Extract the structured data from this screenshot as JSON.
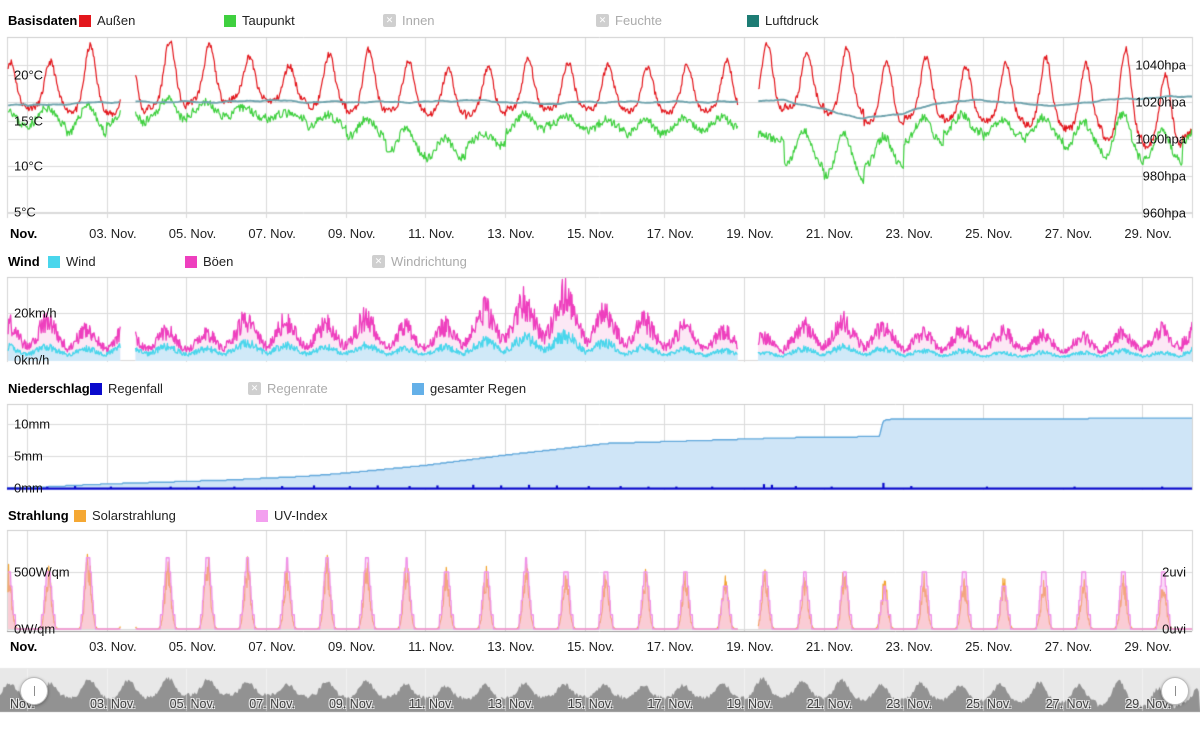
{
  "panels": {
    "basisdaten": {
      "title": "Basisdaten",
      "legend": [
        {
          "key": "aussen",
          "label": "Außen",
          "color": "#e3161c",
          "enabled": true
        },
        {
          "key": "taupunkt",
          "label": "Taupunkt",
          "color": "#3fd03f",
          "enabled": true
        },
        {
          "key": "innen",
          "label": "Innen",
          "enabled": false
        },
        {
          "key": "feuchte",
          "label": "Feuchte",
          "enabled": false
        },
        {
          "key": "luftdruck",
          "label": "Luftdruck",
          "color": "#1d7c74",
          "enabled": true
        }
      ],
      "y_left": [
        {
          "label": "20°C",
          "value": 20
        },
        {
          "label": "15°C",
          "value": 15
        },
        {
          "label": "10°C",
          "value": 10
        },
        {
          "label": "5°C",
          "value": 5
        }
      ],
      "y_right": [
        {
          "label": "1040hpa",
          "value": 1040
        },
        {
          "label": "1020hpa",
          "value": 1020
        },
        {
          "label": "1000hpa",
          "value": 1000
        },
        {
          "label": "980hpa",
          "value": 980
        },
        {
          "label": "960hpa",
          "value": 960
        }
      ]
    },
    "wind": {
      "title": "Wind",
      "legend": [
        {
          "key": "wind",
          "label": "Wind",
          "color": "#49d6ec",
          "enabled": true
        },
        {
          "key": "boeen",
          "label": "Böen",
          "color": "#ee3fbe",
          "enabled": true
        },
        {
          "key": "windrichtung",
          "label": "Windrichtung",
          "enabled": false
        }
      ],
      "y_left": [
        {
          "label": "20km/h",
          "value": 20
        },
        {
          "label": "0km/h",
          "value": 0
        }
      ]
    },
    "niederschlag": {
      "title": "Niederschlag",
      "legend": [
        {
          "key": "regenfall",
          "label": "Regenfall",
          "color": "#0a0acc",
          "enabled": true
        },
        {
          "key": "regenrate",
          "label": "Regenrate",
          "enabled": false
        },
        {
          "key": "gesamter-regen",
          "label": "gesamter Regen",
          "color": "#64b0e8",
          "enabled": true
        }
      ],
      "y_left": [
        {
          "label": "10mm",
          "value": 10
        },
        {
          "label": "5mm",
          "value": 5
        },
        {
          "label": "0mm",
          "value": 0
        }
      ]
    },
    "strahlung": {
      "title": "Strahlung",
      "legend": [
        {
          "key": "solarstrahlung",
          "label": "Solarstrahlung",
          "color": "#f5a833",
          "enabled": true
        },
        {
          "key": "uv-index",
          "label": "UV-Index",
          "color": "#f3a0ef",
          "enabled": true
        }
      ],
      "y_left": [
        {
          "label": "500W/qm",
          "value": 500
        },
        {
          "label": "0W/qm",
          "value": 0
        }
      ],
      "y_right": [
        {
          "label": "2uvi",
          "value": 2
        },
        {
          "label": "0uvi",
          "value": 0
        }
      ]
    }
  },
  "x_axis": {
    "month_label": "Nov.",
    "date_labels": [
      "03. Nov.",
      "05. Nov.",
      "07. Nov.",
      "09. Nov.",
      "11. Nov.",
      "13. Nov.",
      "15. Nov.",
      "17. Nov.",
      "19. Nov.",
      "21. Nov.",
      "23. Nov.",
      "25. Nov.",
      "27. Nov.",
      "29. Nov."
    ]
  },
  "chart_data": [
    {
      "type": "line",
      "panel": "basisdaten",
      "title": "Basisdaten",
      "x_range_days": [
        1,
        30
      ],
      "gaps": [
        [
          3.35,
          3.72
        ],
        [
          18.85,
          19.35
        ]
      ],
      "y_left_axis": {
        "unit": "°C",
        "ticks": [
          20,
          15,
          10,
          5
        ],
        "range": [
          4.3,
          24.2
        ]
      },
      "y_right_axis": {
        "unit": "hpa",
        "ticks": [
          1040,
          1020,
          1000,
          980,
          960
        ],
        "range": [
          957,
          1055
        ]
      },
      "series": [
        {
          "key": "aussen",
          "name": "Außen",
          "unit": "°C",
          "line_color": "#e3161c",
          "daily_max": [
            21.6,
            23.2,
            22.9,
            23.5,
            23.2,
            22.2,
            21.2,
            22.3,
            22.7,
            21.3,
            20.6,
            21.0,
            21.9,
            21.4,
            21.0,
            20.7,
            21.0,
            21.6,
            23.7,
            22.6,
            22.9,
            21.4,
            21.8,
            20.9,
            21.4,
            22.0,
            21.1,
            22.7,
            19.8,
            19.2
          ],
          "daily_min": [
            16.3,
            16.0,
            15.8,
            16.6,
            17.1,
            17.2,
            17.0,
            16.5,
            16.1,
            16.2,
            15.8,
            15.6,
            16.1,
            16.3,
            16.4,
            16.2,
            16.0,
            16.1,
            15.9,
            16.4,
            15.9,
            14.9,
            15.4,
            15.1,
            14.9,
            14.4,
            14.1,
            13.1,
            12.4,
            13.4
          ]
        },
        {
          "key": "taupunkt",
          "name": "Taupunkt",
          "unit": "°C",
          "line_color": "#3fd03f",
          "daily_max": [
            16.6,
            16.9,
            16.3,
            17.2,
            16.9,
            16.5,
            16.0,
            15.8,
            15.1,
            13.9,
            12.9,
            13.6,
            15.9,
            15.6,
            15.1,
            14.9,
            15.1,
            15.3,
            13.6,
            14.1,
            13.6,
            13.1,
            15.1,
            15.6,
            15.3,
            15.5,
            14.9,
            15.6,
            13.6,
            14.6
          ],
          "daily_min": [
            14.1,
            13.3,
            14.6,
            15.1,
            15.6,
            15.3,
            14.9,
            14.1,
            13.1,
            11.3,
            10.9,
            12.1,
            13.6,
            14.1,
            13.9,
            13.6,
            13.9,
            14.1,
            12.6,
            9.6,
            8.4,
            9.9,
            12.6,
            13.6,
            13.1,
            12.6,
            11.6,
            10.6,
            10.6,
            12.6
          ]
        },
        {
          "key": "luftdruck",
          "name": "Luftdruck",
          "unit": "hpa",
          "line_color": "#6fa3ad",
          "daily": [
            1018,
            1019,
            1020,
            1020,
            1020,
            1020,
            1021,
            1020,
            1020,
            1020,
            1020,
            1021,
            1020,
            1019,
            1020,
            1020,
            1020,
            1020,
            1020,
            1021,
            1016,
            1011,
            1014,
            1020,
            1021,
            1019,
            1018,
            1021,
            1022,
            1023
          ]
        }
      ]
    },
    {
      "type": "area",
      "panel": "wind",
      "title": "Wind",
      "gaps": [
        [
          3.35,
          3.72
        ],
        [
          18.85,
          19.35
        ]
      ],
      "y_axis": {
        "unit": "km/h",
        "ticks": [
          20,
          0
        ],
        "range": [
          0,
          35
        ]
      },
      "series": [
        {
          "key": "boeen",
          "name": "Böen",
          "unit": "km/h",
          "line_color": "#ee3fbe",
          "fill": "#fce8f5",
          "daily_max": [
            20,
            16,
            17,
            15,
            14,
            21,
            20,
            19,
            22,
            17,
            18,
            26,
            30,
            34,
            25,
            20,
            17,
            15,
            12,
            18,
            20,
            17,
            14,
            16,
            15,
            13,
            12,
            14,
            16,
            24
          ]
        },
        {
          "key": "wind",
          "name": "Wind",
          "unit": "km/h",
          "line_color": "#49d6ec",
          "fill": "#d0e9f8",
          "daily_max": [
            7,
            6,
            8,
            7,
            6,
            9,
            8,
            7,
            8,
            6,
            7,
            10,
            12,
            13,
            9,
            7,
            6,
            5,
            4,
            6,
            7,
            6,
            5,
            5,
            4,
            4,
            4,
            5,
            4,
            7
          ]
        }
      ]
    },
    {
      "type": "area",
      "panel": "niederschlag",
      "title": "Niederschlag",
      "y_axis": {
        "unit": "mm",
        "ticks": [
          10,
          5,
          0
        ],
        "range": [
          0,
          13.1
        ]
      },
      "series": [
        {
          "key": "gesamter-regen",
          "name": "gesamter Regen",
          "unit": "mm",
          "line_color": "#63a9dc",
          "fill": "#cfe5f7",
          "cumulative": [
            [
              0.3,
              0.0
            ],
            [
              1,
              0.1
            ],
            [
              2,
              0.4
            ],
            [
              3,
              0.7
            ],
            [
              4,
              0.9
            ],
            [
              5,
              1.1
            ],
            [
              6,
              1.3
            ],
            [
              7,
              1.6
            ],
            [
              8,
              1.9
            ],
            [
              9,
              2.4
            ],
            [
              10,
              3.0
            ],
            [
              11,
              3.6
            ],
            [
              12,
              4.4
            ],
            [
              13,
              5.2
            ],
            [
              14,
              5.9
            ],
            [
              15,
              6.6
            ],
            [
              15.5,
              7.0
            ],
            [
              17,
              7.3
            ],
            [
              18,
              7.5
            ],
            [
              19,
              7.7
            ],
            [
              20,
              7.9
            ],
            [
              21,
              8.0
            ],
            [
              22.4,
              8.1
            ],
            [
              22.5,
              10.6
            ],
            [
              22.7,
              10.8
            ],
            [
              24,
              10.85
            ],
            [
              27,
              10.9
            ],
            [
              30.3,
              11.0
            ]
          ]
        },
        {
          "key": "regenfall",
          "name": "Regenfall",
          "unit": "mm",
          "line_color": "#0a0acc",
          "bars": [
            [
              1.5,
              0.2
            ],
            [
              2.2,
              0.3
            ],
            [
              3.1,
              0.2
            ],
            [
              4.6,
              0.2
            ],
            [
              5.3,
              0.3
            ],
            [
              6.2,
              0.2
            ],
            [
              7.4,
              0.3
            ],
            [
              8.2,
              0.4
            ],
            [
              9.1,
              0.3
            ],
            [
              9.8,
              0.4
            ],
            [
              10.6,
              0.3
            ],
            [
              11.3,
              0.4
            ],
            [
              12.2,
              0.5
            ],
            [
              12.9,
              0.4
            ],
            [
              13.6,
              0.5
            ],
            [
              14.3,
              0.4
            ],
            [
              15.1,
              0.3
            ],
            [
              15.9,
              0.3
            ],
            [
              16.6,
              0.2
            ],
            [
              17.3,
              0.2
            ],
            [
              18.2,
              0.2
            ],
            [
              19.5,
              0.6
            ],
            [
              19.7,
              0.5
            ],
            [
              20.3,
              0.3
            ],
            [
              21.2,
              0.2
            ],
            [
              22.5,
              0.8
            ],
            [
              23.2,
              0.3
            ],
            [
              25.1,
              0.2
            ],
            [
              27.3,
              0.2
            ],
            [
              29.5,
              0.2
            ]
          ]
        }
      ]
    },
    {
      "type": "area",
      "panel": "strahlung",
      "title": "Strahlung",
      "gaps": [
        [
          3.35,
          3.72
        ],
        [
          18.85,
          19.35
        ]
      ],
      "y_left_axis": {
        "unit": "W/qm",
        "ticks": [
          500,
          0
        ],
        "range": [
          0,
          860
        ]
      },
      "y_right_axis": {
        "unit": "uvi",
        "ticks": [
          2,
          0
        ],
        "range": [
          0,
          3.5
        ]
      },
      "series": [
        {
          "key": "solarstrahlung",
          "name": "Solarstrahlung",
          "unit": "W/qm",
          "line_color": "#f2a430",
          "fill": "rgba(250,196,120,0.45)",
          "daily_peak": [
            500,
            630,
            545,
            560,
            600,
            560,
            520,
            565,
            580,
            540,
            500,
            480,
            520,
            500,
            480,
            460,
            470,
            420,
            480,
            440,
            520,
            400,
            430,
            400,
            410,
            380,
            390,
            430,
            400,
            380
          ]
        },
        {
          "key": "uv-index",
          "name": "UV-Index",
          "unit": "uvi",
          "line_color": "#ef93e8",
          "fill": "rgba(246,170,238,0.42)",
          "daily_peak": [
            2.1,
            2.7,
            2.4,
            2.5,
            2.6,
            2.4,
            2.3,
            2.5,
            2.5,
            2.3,
            2.2,
            2.1,
            2.3,
            2.2,
            2.1,
            2.0,
            2.1,
            1.5,
            2.2,
            1.9,
            2.0,
            1.3,
            2.2,
            2.1,
            1.5,
            2.2,
            2.1,
            2.1,
            2.0,
            1.7
          ]
        }
      ]
    }
  ],
  "navigator": {
    "description": "overview silhouette of outdoor temperature / activity",
    "bg_color": "#e8e8e8",
    "silhouette_color": "#929292"
  }
}
